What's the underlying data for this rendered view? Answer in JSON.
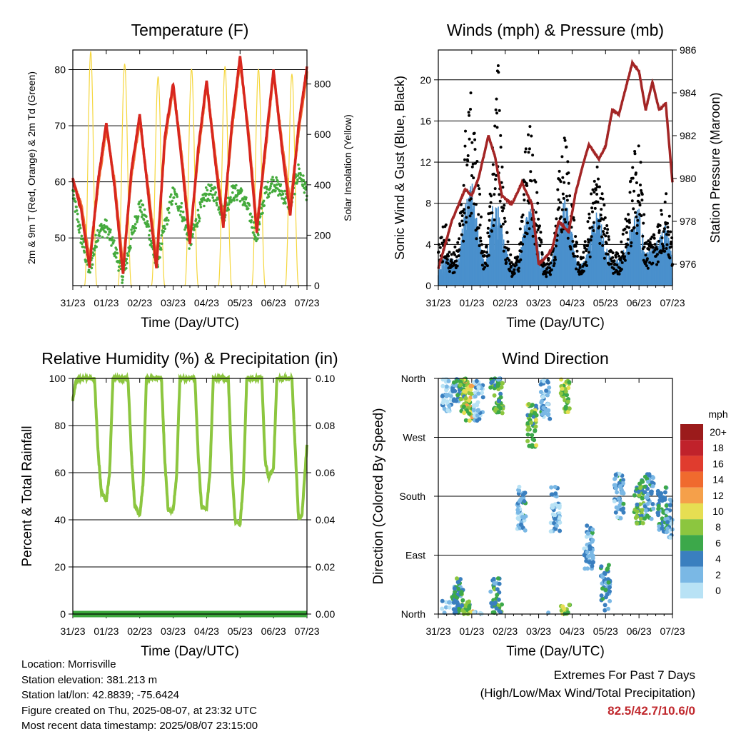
{
  "chart_data": [
    {
      "type": "line",
      "title": "Temperature (F)",
      "xlabel": "Time (Day/UTC)",
      "ylabel": "2m & 9m T (Red, Orange) & 2m Td (Green)",
      "y2label": "Solar Insolation (Yellow)",
      "x_ticks": [
        "31/23",
        "01/23",
        "02/23",
        "03/23",
        "04/23",
        "05/23",
        "06/23",
        "07/23"
      ],
      "ylim": [
        41.5,
        83.5
      ],
      "yticks": [
        50,
        60,
        70,
        80
      ],
      "y2lim": [
        0,
        935
      ],
      "y2ticks": [
        0,
        200,
        400,
        600,
        800
      ],
      "grid": true,
      "series": [
        {
          "name": "2m T",
          "color": "#d7261e",
          "x": [
            0,
            0.25,
            0.5,
            0.75,
            1,
            1.25,
            1.5,
            1.75,
            2,
            2.25,
            2.5,
            2.75,
            3,
            3.25,
            3.5,
            3.75,
            4,
            4.25,
            4.5,
            4.75,
            5,
            5.25,
            5.5,
            5.75,
            6,
            6.25,
            6.5,
            6.75,
            7
          ],
          "y": [
            60.5,
            55,
            44.8,
            60,
            70.5,
            59,
            43.5,
            62,
            72,
            58,
            44.5,
            68,
            77.5,
            64,
            49,
            66,
            78,
            64,
            52,
            70,
            82.5,
            68,
            51,
            66,
            80,
            66,
            54,
            70,
            80.5
          ]
        },
        {
          "name": "9m T",
          "color": "#f07030",
          "x": [
            0,
            0.25,
            0.5,
            0.75,
            1,
            1.25,
            1.5,
            1.75,
            2,
            2.25,
            2.5,
            2.75,
            3,
            3.25,
            3.5,
            3.75,
            4,
            4.25,
            4.5,
            4.75,
            5,
            5.25,
            5.5,
            5.75,
            6,
            6.25,
            6.5,
            6.75,
            7
          ],
          "y": [
            60,
            56,
            46,
            59,
            69.5,
            60,
            45,
            61,
            71,
            59,
            46,
            67,
            77,
            65,
            50,
            65,
            77.5,
            65,
            53,
            69,
            81.5,
            69,
            52,
            65,
            79.5,
            67,
            56,
            69,
            79.5
          ]
        },
        {
          "name": "2m Td",
          "color": "#44aa3c",
          "x": [
            0,
            0.25,
            0.5,
            0.75,
            1,
            1.25,
            1.5,
            1.75,
            2,
            2.25,
            2.5,
            2.75,
            3,
            3.25,
            3.5,
            3.75,
            4,
            4.25,
            4.5,
            4.75,
            5,
            5.25,
            5.5,
            5.75,
            6,
            6.25,
            6.5,
            6.75,
            7
          ],
          "y": [
            58,
            50,
            44,
            51,
            52,
            48,
            43,
            50,
            56,
            52,
            45,
            52,
            58,
            55,
            49,
            54,
            58,
            58,
            54,
            58,
            58,
            55,
            50,
            58,
            60,
            58,
            56,
            62,
            58
          ]
        },
        {
          "name": "Solar Insolation",
          "color": "#f5d63c",
          "axis": "y2",
          "x": [
            0.35,
            0.55,
            0.72,
            1.35,
            1.55,
            1.75,
            2.35,
            2.55,
            2.75,
            3.35,
            3.55,
            3.75,
            4.35,
            4.55,
            4.75,
            5.35,
            5.55,
            5.75,
            6.35,
            6.55,
            6.75
          ],
          "y": [
            0,
            930,
            0,
            0,
            880,
            0,
            0,
            830,
            0,
            0,
            860,
            0,
            0,
            870,
            0,
            0,
            860,
            0,
            0,
            840,
            0
          ]
        }
      ]
    },
    {
      "type": "scatter",
      "title": "Winds (mph) & Pressure (mb)",
      "xlabel": "Time (Day/UTC)",
      "ylabel": "Sonic Wind & Gust (Blue, Black)",
      "y2label": "Station Pressure (Maroon)",
      "x_ticks": [
        "31/23",
        "01/23",
        "02/23",
        "03/23",
        "04/23",
        "05/23",
        "06/23",
        "07/23"
      ],
      "ylim": [
        0,
        22.9
      ],
      "yticks": [
        0,
        4,
        8,
        12,
        16,
        20
      ],
      "y2lim": [
        975,
        986
      ],
      "y2ticks": [
        976,
        978,
        980,
        982,
        984,
        986
      ],
      "grid": true,
      "series": [
        {
          "name": "Sonic Wind",
          "color": "#4a90cc",
          "x": [
            0,
            0.2,
            0.4,
            0.6,
            0.8,
            1,
            1.2,
            1.4,
            1.6,
            1.8,
            2,
            2.2,
            2.4,
            2.6,
            2.8,
            3,
            3.2,
            3.4,
            3.6,
            3.8,
            4,
            4.2,
            4.4,
            4.6,
            4.8,
            5,
            5.2,
            5.4,
            5.6,
            5.8,
            6,
            6.2,
            6.4,
            6.6,
            6.8,
            7
          ],
          "y": [
            1.5,
            2.5,
            2,
            2,
            6,
            8,
            4,
            1.5,
            6,
            6,
            3,
            1.5,
            2,
            5,
            6,
            3,
            1.5,
            2,
            5,
            7,
            4,
            1.5,
            2,
            4.5,
            6,
            3,
            2,
            2,
            3,
            5,
            6,
            2.5,
            3,
            3.5,
            5,
            2
          ]
        },
        {
          "name": "Gust",
          "color": "#000000",
          "x": [
            0,
            0.2,
            0.4,
            0.6,
            0.8,
            1,
            1.2,
            1.4,
            1.6,
            1.8,
            2,
            2.2,
            2.4,
            2.6,
            2.8,
            3,
            3.2,
            3.4,
            3.6,
            3.8,
            4,
            4.2,
            4.4,
            4.6,
            4.8,
            5,
            5.2,
            5.4,
            5.6,
            5.8,
            6,
            6.2,
            6.4,
            6.6,
            6.8,
            7
          ],
          "y": [
            4,
            6,
            3,
            4,
            14,
            17.6,
            10,
            2,
            12,
            20.8,
            6,
            2,
            3,
            12,
            15,
            6,
            2,
            3,
            10,
            14,
            8,
            2,
            4,
            9,
            12,
            6,
            3,
            3,
            6,
            11,
            14,
            4,
            5,
            6,
            9,
            4
          ]
        },
        {
          "name": "Station Pressure",
          "color": "#a32525",
          "axis": "y2",
          "x": [
            0,
            0.4,
            0.8,
            1,
            1.2,
            1.5,
            1.7,
            1.9,
            2.2,
            2.5,
            2.8,
            3,
            3.2,
            3.4,
            3.6,
            3.9,
            4.1,
            4.3,
            4.5,
            4.8,
            5,
            5.2,
            5.4,
            5.6,
            5.8,
            6,
            6.2,
            6.4,
            6.6,
            6.8,
            7
          ],
          "y": [
            975.8,
            978,
            979.5,
            979.2,
            980,
            982,
            981,
            979.2,
            978.8,
            979.8,
            978.8,
            976,
            976.3,
            976.7,
            978,
            977.5,
            979.3,
            980.5,
            981.6,
            980.9,
            981.5,
            983.2,
            983,
            984.2,
            985.4,
            985,
            983.2,
            984.5,
            983.2,
            983.5,
            979.8
          ]
        }
      ]
    },
    {
      "type": "line",
      "title": "Relative Humidity (%) & Precipitation (in)",
      "xlabel": "Time (Day/UTC)",
      "ylabel": "Percent & Total Rainfall",
      "x_ticks": [
        "31/23",
        "01/23",
        "02/23",
        "03/23",
        "04/23",
        "05/23",
        "06/23",
        "07/23"
      ],
      "ylim": [
        0,
        100
      ],
      "yticks": [
        0,
        20,
        40,
        60,
        80,
        100
      ],
      "y2lim": [
        0,
        0.1
      ],
      "y2ticks": [
        "0.00",
        "0.02",
        "0.04",
        "0.06",
        "0.08",
        "0.10"
      ],
      "grid": true,
      "series": [
        {
          "name": "Relative Humidity",
          "color": "#8cc63f",
          "x": [
            0,
            0.1,
            0.2,
            0.35,
            0.55,
            0.65,
            0.75,
            0.85,
            1,
            1.1,
            1.2,
            1.35,
            1.55,
            1.65,
            1.75,
            1.85,
            2,
            2.1,
            2.2,
            2.35,
            2.55,
            2.65,
            2.75,
            2.85,
            3,
            3.1,
            3.2,
            3.35,
            3.55,
            3.65,
            3.75,
            3.85,
            4,
            4.1,
            4.2,
            4.35,
            4.55,
            4.65,
            4.75,
            4.85,
            5,
            5.1,
            5.2,
            5.35,
            5.55,
            5.65,
            5.75,
            5.85,
            6,
            6.1,
            6.2,
            6.35,
            6.55,
            6.65,
            6.75,
            6.85,
            7
          ],
          "y": [
            91,
            99,
            100,
            100,
            100,
            100,
            70,
            52,
            48,
            60,
            100,
            100,
            100,
            100,
            68,
            46,
            42,
            55,
            100,
            100,
            100,
            100,
            65,
            44,
            44,
            58,
            100,
            100,
            100,
            100,
            67,
            45,
            45,
            60,
            100,
            100,
            100,
            100,
            62,
            40,
            38,
            56,
            100,
            100,
            100,
            100,
            65,
            58,
            62,
            100,
            100,
            100,
            100,
            70,
            40,
            42,
            72
          ]
        },
        {
          "name": "Total Precipitation",
          "color": "#3aa63a",
          "x": [
            0,
            7
          ],
          "y": [
            0,
            0
          ]
        }
      ]
    },
    {
      "type": "scatter",
      "title": "Wind Direction",
      "xlabel": "Time (Day/UTC)",
      "ylabel": "Direction (Colored By Speed)",
      "x_ticks": [
        "31/23",
        "01/23",
        "02/23",
        "03/23",
        "04/23",
        "05/23",
        "06/23",
        "07/23"
      ],
      "ylim": [
        0,
        360
      ],
      "yticks": [
        "North",
        "East",
        "South",
        "West",
        "North"
      ],
      "grid": true,
      "legend_title": "mph",
      "legend_labels": [
        "20+",
        "18",
        "16",
        "14",
        "12",
        "10",
        "8",
        "6",
        "4",
        "2",
        "0"
      ],
      "legend_colors": [
        "#9b1b1b",
        "#c0222b",
        "#e03c2e",
        "#f06a2e",
        "#f5a04a",
        "#e6de52",
        "#8cc63f",
        "#3ca84a",
        "#3a7fbf",
        "#7ab8e5",
        "#b8e2f5"
      ],
      "clusters": [
        {
          "x": 0.25,
          "dir": 345,
          "speed": 2
        },
        {
          "x": 0.55,
          "dir": 360,
          "speed": 4
        },
        {
          "x": 0.8,
          "dir": 345,
          "speed": 7
        },
        {
          "x": 0.9,
          "dir": 330,
          "speed": 9
        },
        {
          "x": 1.2,
          "dir": 330,
          "speed": 1
        },
        {
          "x": 1.8,
          "dir": 340,
          "speed": 6
        },
        {
          "x": 1.7,
          "dir": 20,
          "speed": 5
        },
        {
          "x": 0.6,
          "dir": 20,
          "speed": 5
        },
        {
          "x": 2.5,
          "dir": 160,
          "speed": 3
        },
        {
          "x": 2.8,
          "dir": 290,
          "speed": 7
        },
        {
          "x": 3.2,
          "dir": 330,
          "speed": 3
        },
        {
          "x": 3.8,
          "dir": 340,
          "speed": 8
        },
        {
          "x": 3.5,
          "dir": 160,
          "speed": 2
        },
        {
          "x": 4.5,
          "dir": 100,
          "speed": 3
        },
        {
          "x": 5.0,
          "dir": 40,
          "speed": 4
        },
        {
          "x": 5.4,
          "dir": 180,
          "speed": 3
        },
        {
          "x": 6.0,
          "dir": 170,
          "speed": 6
        },
        {
          "x": 6.3,
          "dir": 180,
          "speed": 4
        },
        {
          "x": 6.7,
          "dir": 160,
          "speed": 4
        },
        {
          "x": 6.9,
          "dir": 140,
          "speed": 3
        }
      ]
    }
  ],
  "info": {
    "location": "Location: Morrisville",
    "elevation": "Station elevation: 381.213 m",
    "latlon": "Station lat/lon: 42.8839; -75.6424",
    "created": "Figure created on Thu, 2025-08-07, at 23:32 UTC",
    "recent": "Most recent data timestamp: 2025/08/07 23:15:00"
  },
  "extremes": {
    "line1": "Extremes For Past 7 Days",
    "line2": "(High/Low/Max Wind/Total Precipitation)",
    "values": "82.5/42.7/10.6/0"
  }
}
